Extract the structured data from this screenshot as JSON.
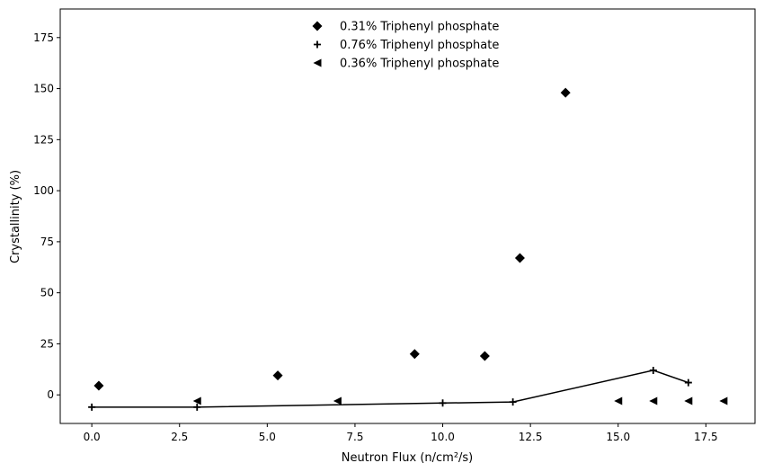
{
  "chart_data": {
    "type": "scatter",
    "title": "",
    "xlabel": "Neutron Flux (n/cm²/s)",
    "ylabel": "Crystallinity (%)",
    "xlim": [
      -0.9,
      18.9
    ],
    "ylim": [
      -14,
      189
    ],
    "xticks": [
      0.0,
      2.5,
      5.0,
      7.5,
      10.0,
      12.5,
      15.0,
      17.5
    ],
    "xtick_labels": [
      "0.0",
      "2.5",
      "5.0",
      "7.5",
      "10.0",
      "12.5",
      "15.0",
      "17.5"
    ],
    "yticks": [
      0,
      25,
      50,
      75,
      100,
      125,
      150,
      175
    ],
    "ytick_labels": [
      "0",
      "25",
      "50",
      "75",
      "100",
      "125",
      "150",
      "175"
    ],
    "grid": false,
    "legend_position": "top-center",
    "series": [
      {
        "name": "0.31% Triphenyl phosphate",
        "marker": "diamond",
        "line": false,
        "color": "#000000",
        "x": [
          0.2,
          5.3,
          9.2,
          11.2,
          12.2,
          13.5
        ],
        "y": [
          4.5,
          9.5,
          20.0,
          19.0,
          67.0,
          148.0
        ]
      },
      {
        "name": "0.76% Triphenyl phosphate",
        "marker": "plus",
        "line": true,
        "color": "#000000",
        "x": [
          0.0,
          3.0,
          10.0,
          12.0,
          16.0,
          17.0
        ],
        "y": [
          -6.0,
          -6.0,
          -4.0,
          -3.5,
          12.0,
          6.0
        ]
      },
      {
        "name": "0.36% Triphenyl phosphate",
        "marker": "triangle-left",
        "line": false,
        "color": "#000000",
        "x": [
          3.0,
          7.0,
          15.0,
          16.0,
          17.0,
          18.0
        ],
        "y": [
          -3.0,
          -3.0,
          -3.0,
          -3.0,
          -3.0,
          -3.0
        ]
      }
    ]
  }
}
